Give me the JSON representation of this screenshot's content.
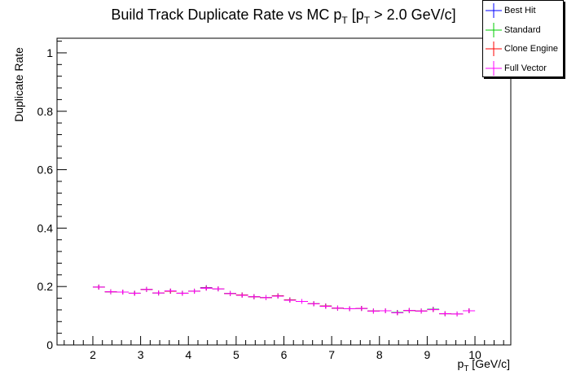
{
  "chart_data": {
    "type": "scatter",
    "title_main": "Build Track Duplicate Rate vs MC p",
    "title_sub1": "T",
    "title_mid": " [p",
    "title_sub2": "T",
    "title_end": " > 2.0 GeV/c]",
    "xlabel_main": "p",
    "xlabel_sub": "T",
    "xlabel_unit": " [GeV/c]",
    "ylabel": "Duplicate Rate",
    "xlim": [
      1.25,
      10.75
    ],
    "ylim": [
      0,
      1.05
    ],
    "x_ticks": [
      2,
      3,
      4,
      5,
      6,
      7,
      8,
      9,
      10
    ],
    "x_tick_labels": [
      "2",
      "3",
      "4",
      "5",
      "6",
      "7",
      "8",
      "9",
      "10"
    ],
    "y_ticks": [
      0,
      0.2,
      0.4,
      0.6,
      0.8,
      1
    ],
    "y_tick_labels": [
      "0",
      "0.2",
      "0.4",
      "0.6",
      "0.8",
      "1"
    ],
    "bin_width": 0.25,
    "x": [
      2.125,
      2.375,
      2.625,
      2.875,
      3.125,
      3.375,
      3.625,
      3.875,
      4.125,
      4.375,
      4.625,
      4.875,
      5.125,
      5.375,
      5.625,
      5.875,
      6.125,
      6.375,
      6.625,
      6.875,
      7.125,
      7.375,
      7.625,
      7.875,
      8.125,
      8.375,
      8.625,
      8.875,
      9.125,
      9.375,
      9.625,
      9.875
    ],
    "series": [
      {
        "name": "Best Hit",
        "color": "#0000ff",
        "values": [
          0.198,
          0.182,
          0.181,
          0.177,
          0.19,
          0.178,
          0.184,
          0.177,
          0.184,
          0.196,
          0.192,
          0.176,
          0.171,
          0.165,
          0.162,
          0.168,
          0.154,
          0.149,
          0.141,
          0.133,
          0.126,
          0.124,
          0.125,
          0.116,
          0.117,
          0.111,
          0.118,
          0.116,
          0.122,
          0.107,
          0.106,
          0.117
        ]
      },
      {
        "name": "Standard",
        "color": "#00cc00",
        "values": [
          0.198,
          0.182,
          0.181,
          0.177,
          0.19,
          0.178,
          0.184,
          0.177,
          0.184,
          0.195,
          0.192,
          0.176,
          0.171,
          0.165,
          0.162,
          0.168,
          0.154,
          0.149,
          0.141,
          0.133,
          0.126,
          0.124,
          0.125,
          0.116,
          0.117,
          0.111,
          0.118,
          0.116,
          0.122,
          0.107,
          0.106,
          0.117
        ]
      },
      {
        "name": "Clone Engine",
        "color": "#ff0000",
        "values": [
          0.198,
          0.182,
          0.181,
          0.177,
          0.19,
          0.178,
          0.184,
          0.177,
          0.184,
          0.195,
          0.192,
          0.176,
          0.171,
          0.165,
          0.162,
          0.168,
          0.154,
          0.149,
          0.141,
          0.133,
          0.126,
          0.124,
          0.125,
          0.116,
          0.117,
          0.11,
          0.118,
          0.116,
          0.121,
          0.107,
          0.106,
          0.117
        ]
      },
      {
        "name": "Full Vector",
        "color": "#ff00ff",
        "values": [
          0.198,
          0.182,
          0.181,
          0.177,
          0.19,
          0.178,
          0.185,
          0.177,
          0.184,
          0.194,
          0.192,
          0.176,
          0.17,
          0.165,
          0.162,
          0.167,
          0.153,
          0.149,
          0.141,
          0.132,
          0.126,
          0.124,
          0.125,
          0.116,
          0.117,
          0.11,
          0.118,
          0.116,
          0.121,
          0.107,
          0.106,
          0.117
        ]
      }
    ],
    "grid": false,
    "legend_position": "top-right"
  }
}
